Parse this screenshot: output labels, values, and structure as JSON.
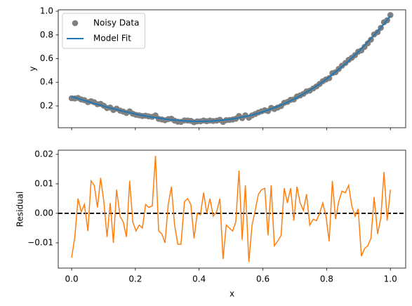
{
  "chart_data": [
    {
      "type": "scatter",
      "ylabel": "y",
      "x": [
        0,
        0.01,
        0.02,
        0.03,
        0.04,
        0.051,
        0.061,
        0.071,
        0.081,
        0.091,
        0.101,
        0.111,
        0.121,
        0.131,
        0.141,
        0.152,
        0.162,
        0.172,
        0.182,
        0.192,
        0.202,
        0.212,
        0.222,
        0.232,
        0.242,
        0.253,
        0.263,
        0.273,
        0.283,
        0.293,
        0.303,
        0.313,
        0.323,
        0.333,
        0.343,
        0.354,
        0.364,
        0.374,
        0.384,
        0.394,
        0.404,
        0.414,
        0.424,
        0.434,
        0.444,
        0.455,
        0.465,
        0.475,
        0.485,
        0.495,
        0.505,
        0.515,
        0.525,
        0.535,
        0.545,
        0.556,
        0.566,
        0.576,
        0.586,
        0.596,
        0.606,
        0.616,
        0.626,
        0.636,
        0.646,
        0.657,
        0.667,
        0.677,
        0.687,
        0.697,
        0.707,
        0.717,
        0.727,
        0.737,
        0.747,
        0.758,
        0.768,
        0.778,
        0.788,
        0.798,
        0.808,
        0.818,
        0.828,
        0.838,
        0.848,
        0.859,
        0.869,
        0.879,
        0.889,
        0.899,
        0.909,
        0.919,
        0.929,
        0.939,
        0.949,
        0.96,
        0.97,
        0.98,
        0.99,
        1
      ],
      "series": [
        {
          "name": "Noisy Data",
          "color": "#808080",
          "kind": "scatter",
          "values": [
            0.265,
            0.263,
            0.268,
            0.255,
            0.249,
            0.232,
            0.24,
            0.231,
            0.215,
            0.218,
            0.202,
            0.182,
            0.187,
            0.166,
            0.177,
            0.161,
            0.152,
            0.141,
            0.154,
            0.134,
            0.125,
            0.121,
            0.115,
            0.118,
            0.112,
            0.108,
            0.12,
            0.091,
            0.086,
            0.079,
            0.089,
            0.092,
            0.076,
            0.067,
            0.065,
            0.078,
            0.077,
            0.074,
            0.062,
            0.07,
            0.07,
            0.077,
            0.071,
            0.077,
            0.073,
            0.076,
            0.083,
            0.065,
            0.08,
            0.082,
            0.085,
            0.092,
            0.115,
            0.097,
            0.121,
            0.101,
            0.12,
            0.132,
            0.145,
            0.155,
            0.164,
            0.157,
            0.184,
            0.174,
            0.186,
            0.199,
            0.227,
            0.234,
            0.252,
            0.255,
            0.28,
            0.289,
            0.302,
            0.323,
            0.329,
            0.348,
            0.365,
            0.386,
            0.409,
            0.424,
            0.435,
            0.477,
            0.485,
            0.513,
            0.54,
            0.563,
            0.589,
            0.607,
            0.629,
            0.658,
            0.669,
            0.699,
            0.729,
            0.76,
            0.804,
            0.823,
            0.86,
            0.907,
            0.924,
            0.968
          ]
        },
        {
          "name": "Model Fit",
          "color": "#1f77b4",
          "kind": "line",
          "values": [
            0.28,
            0.271,
            0.263,
            0.254,
            0.246,
            0.238,
            0.229,
            0.221,
            0.213,
            0.206,
            0.198,
            0.19,
            0.183,
            0.176,
            0.169,
            0.162,
            0.155,
            0.149,
            0.143,
            0.137,
            0.131,
            0.125,
            0.12,
            0.115,
            0.11,
            0.105,
            0.101,
            0.097,
            0.093,
            0.089,
            0.086,
            0.083,
            0.08,
            0.078,
            0.076,
            0.074,
            0.072,
            0.071,
            0.071,
            0.07,
            0.07,
            0.07,
            0.071,
            0.072,
            0.074,
            0.076,
            0.078,
            0.081,
            0.084,
            0.087,
            0.091,
            0.095,
            0.1,
            0.106,
            0.111,
            0.117,
            0.124,
            0.131,
            0.139,
            0.147,
            0.156,
            0.165,
            0.175,
            0.185,
            0.195,
            0.207,
            0.218,
            0.231,
            0.244,
            0.257,
            0.271,
            0.286,
            0.301,
            0.317,
            0.333,
            0.35,
            0.368,
            0.386,
            0.405,
            0.425,
            0.445,
            0.466,
            0.487,
            0.509,
            0.532,
            0.556,
            0.58,
            0.605,
            0.63,
            0.656,
            0.684,
            0.711,
            0.74,
            0.769,
            0.799,
            0.83,
            0.861,
            0.893,
            0.926,
            0.96
          ]
        }
      ],
      "xlim": [
        -0.042,
        1.048
      ],
      "xticks": [
        0,
        0.2,
        0.4,
        0.6,
        0.8,
        1
      ],
      "show_xticklabels": false,
      "ylim": [
        0.016,
        1.012
      ],
      "yticks": [
        0.2,
        0.4,
        0.6,
        0.8,
        {
          "value": 1,
          "label": "1.0"
        }
      ],
      "legend": "upper left"
    },
    {
      "type": "line",
      "xlabel": "x",
      "ylabel": "Residual",
      "x": [
        0,
        0.01,
        0.02,
        0.03,
        0.04,
        0.051,
        0.061,
        0.071,
        0.081,
        0.091,
        0.101,
        0.111,
        0.121,
        0.131,
        0.141,
        0.152,
        0.162,
        0.172,
        0.182,
        0.192,
        0.202,
        0.212,
        0.222,
        0.232,
        0.242,
        0.253,
        0.263,
        0.273,
        0.283,
        0.293,
        0.303,
        0.313,
        0.323,
        0.333,
        0.343,
        0.354,
        0.364,
        0.374,
        0.384,
        0.394,
        0.404,
        0.414,
        0.424,
        0.434,
        0.444,
        0.455,
        0.465,
        0.475,
        0.485,
        0.495,
        0.505,
        0.515,
        0.525,
        0.535,
        0.545,
        0.556,
        0.566,
        0.576,
        0.586,
        0.596,
        0.606,
        0.616,
        0.626,
        0.636,
        0.646,
        0.657,
        0.667,
        0.677,
        0.687,
        0.697,
        0.707,
        0.717,
        0.727,
        0.737,
        0.747,
        0.758,
        0.768,
        0.778,
        0.788,
        0.798,
        0.808,
        0.818,
        0.828,
        0.838,
        0.848,
        0.859,
        0.869,
        0.879,
        0.889,
        0.899,
        0.909,
        0.919,
        0.929,
        0.939,
        0.949,
        0.96,
        0.97,
        0.98,
        0.99,
        1
      ],
      "series": [
        {
          "color": "#ff7f0e",
          "kind": "line",
          "values": [
            -0.015,
            -0.008,
            0.005,
            0.0005,
            0.003,
            -0.006,
            0.011,
            0.0095,
            0.002,
            0.012,
            0.004,
            -0.008,
            0.0035,
            -0.01,
            0.008,
            -0.001,
            -0.003,
            -0.008,
            0.011,
            -0.003,
            -0.006,
            -0.004,
            -0.005,
            0.003,
            0.002,
            0.0025,
            0.0195,
            -0.006,
            -0.007,
            -0.01,
            0.003,
            0.009,
            -0.004,
            -0.0105,
            -0.0105,
            0.004,
            0.005,
            0.003,
            -0.0085,
            0,
            -0.0005,
            0.007,
            0,
            0.005,
            -0.001,
            0.0005,
            0.005,
            -0.0155,
            -0.004,
            -0.005,
            -0.006,
            -0.003,
            0.0145,
            -0.009,
            0.0095,
            -0.0165,
            -0.004,
            0.001,
            0.0065,
            0.008,
            0.0085,
            -0.0075,
            0.0095,
            -0.011,
            -0.0095,
            -0.0075,
            0.0085,
            0.0035,
            0.0085,
            -0.0025,
            0.009,
            0.0035,
            0.001,
            0.0065,
            -0.004,
            -0.002,
            -0.0025,
            0,
            0.0035,
            -0.001,
            -0.0095,
            0.011,
            -0.002,
            0.004,
            0.0075,
            0.007,
            0.0095,
            0.0025,
            -0.001,
            0.0015,
            -0.0145,
            -0.012,
            -0.011,
            -0.0085,
            0.0055,
            -0.007,
            -0.0015,
            0.014,
            -0.0025,
            0.008
          ]
        }
      ],
      "hline": {
        "value": 0,
        "color": "#000000",
        "dashed": true
      },
      "xlim": [
        -0.042,
        1.048
      ],
      "xticks": [
        {
          "value": 0,
          "label": "0.0"
        },
        0.2,
        0.4,
        0.6,
        0.8,
        {
          "value": 1,
          "label": "1.0"
        }
      ],
      "show_xticklabels": true,
      "ylim": [
        -0.01857,
        0.0214
      ],
      "yticks": [
        {
          "value": -0.01,
          "label": "−0.01"
        },
        {
          "value": 0,
          "label": "0.00"
        },
        {
          "value": 0.01,
          "label": "0.01"
        },
        {
          "value": 0.02,
          "label": "0.02"
        }
      ]
    }
  ]
}
